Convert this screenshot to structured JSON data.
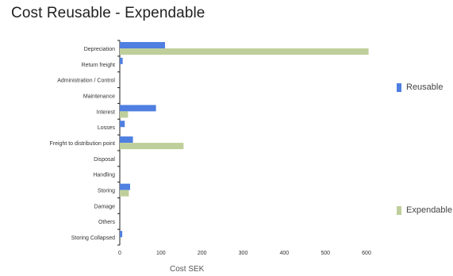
{
  "chart_data": {
    "type": "bar",
    "orientation": "horizontal",
    "title": "Cost Reusable - Expendable",
    "xlabel": "Cost SEK",
    "ylabel": "",
    "xlim": [
      0,
      600
    ],
    "xticks": [
      0,
      100,
      200,
      300,
      400,
      500,
      600
    ],
    "grid": false,
    "legend_position": "right",
    "categories": [
      "Depreciation",
      "Return freight",
      "Administration / Control",
      "Maintenance",
      "Interest",
      "Losses",
      "Freight to distribution point",
      "Disposal",
      "Handling",
      "Storing",
      "Damage",
      "Others",
      "Storing Collapsed"
    ],
    "series": [
      {
        "name": "Reusable",
        "color": "#4f7fe0",
        "values": [
          110,
          7,
          0,
          0,
          88,
          12,
          32,
          0,
          0,
          25,
          0,
          0,
          6
        ]
      },
      {
        "name": "Expendable",
        "color": "#bfcf9c",
        "values": [
          605,
          0,
          0,
          0,
          20,
          0,
          155,
          0,
          0,
          22,
          0,
          0,
          0
        ]
      }
    ]
  }
}
